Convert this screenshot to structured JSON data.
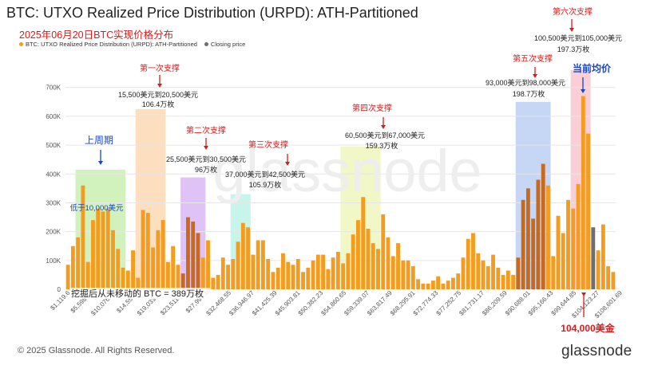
{
  "header": {
    "title": "BTC: UTXO Realized Price Distribution (URPD): ATH-Partitioned",
    "subtitle": "2025年06月20日BTC实现价格分布"
  },
  "legend": {
    "series_label": "BTC: UTXO Realized Price Distribution (URPD): ATH-Partitioned",
    "closing_label": "Closing price"
  },
  "footer": {
    "copyright": "© 2025 Glassnode. All Rights Reserved.",
    "brand": "glassnode"
  },
  "watermark": "glassnode",
  "colors": {
    "bar": "#f39c1f",
    "bar_shade": "#c76a1d",
    "closing": "#6e6e6e",
    "green": "#c9f0b0",
    "orange": "#fdd8b3",
    "purple": "#dab8f5",
    "teal": "#bdf2e8",
    "yellow": "#eef6bd",
    "blue": "#bcd0f5",
    "pink": "#f9c6cf",
    "red_text": "#d61c1c",
    "blue_text": "#1a47c4",
    "grid": "#e6e6e6"
  },
  "annotations": {
    "support1": {
      "title": "第一次支撑",
      "range": "15,500美元到20,500美元",
      "amount": "106.4万枚"
    },
    "support2": {
      "title": "第二次支撑",
      "range": "25,500美元到30,500美元",
      "amount": "96万枚"
    },
    "support3": {
      "title": "第三次支撑",
      "range": "37,000美元到42,500美元",
      "amount": "105.9万枚"
    },
    "support4": {
      "title": "第四次支撑",
      "range": "60,500美元到67,000美元",
      "amount": "159.3万枚"
    },
    "support5": {
      "title": "第五次支撑",
      "range": "93,000美元到98,000美元",
      "amount": "198.7万枚"
    },
    "support6": {
      "title": "第六次支撑",
      "range": "100,500美元到105,000美元",
      "amount": "197.3万枚"
    },
    "prev_cycle": "上周期",
    "below_10k": "低于10,000美元",
    "current_avg": "当前均价",
    "mined": "挖掘后从未移动的 BTC = 389万枚",
    "price_104k": "104,000美金"
  },
  "chart_data": {
    "type": "bar",
    "title": "BTC: UTXO Realized Price Distribution (URPD): ATH-Partitioned",
    "y_ticks": [
      "0",
      "100K",
      "200K",
      "300K",
      "400K",
      "500K",
      "600K",
      "700K"
    ],
    "ylim": [
      0,
      760000
    ],
    "x_tick_labels": [
      "$1,119.6",
      "$5,598.01",
      "$10,076.42",
      "$14,554.8",
      "$19,033.22",
      "$23,511.63",
      "$27,990.1",
      "$32,468.55",
      "$36,946.97",
      "$41,425.39",
      "$45,903.81",
      "$50,382.23",
      "$54,860.65",
      "$59,339.07",
      "$63,817.49",
      "$68,295.91",
      "$72,774.33",
      "$77,252.75",
      "$81,731.17",
      "$86,209.59",
      "$90,688.01",
      "$95,166.43",
      "$99,644.85",
      "$104,123.27",
      "$108,601.69"
    ],
    "closing_price_bin": 105,
    "values": [
      85000,
      150000,
      180000,
      360000,
      95000,
      240000,
      280000,
      270000,
      280000,
      205000,
      140000,
      75000,
      65000,
      135000,
      40000,
      275000,
      265000,
      145000,
      205000,
      240000,
      95000,
      150000,
      85000,
      55000,
      250000,
      235000,
      195000,
      110000,
      170000,
      40000,
      50000,
      110000,
      85000,
      105000,
      165000,
      230000,
      215000,
      120000,
      170000,
      170000,
      105000,
      60000,
      75000,
      125000,
      95000,
      85000,
      105000,
      60000,
      75000,
      100000,
      120000,
      120000,
      70000,
      110000,
      130000,
      90000,
      125000,
      190000,
      240000,
      320000,
      210000,
      160000,
      140000,
      260000,
      180000,
      115000,
      160000,
      100000,
      100000,
      80000,
      35000,
      20000,
      20000,
      30000,
      45000,
      20000,
      30000,
      40000,
      55000,
      110000,
      175000,
      195000,
      125000,
      100000,
      80000,
      120000,
      75000,
      50000,
      65000,
      50000,
      110000,
      310000,
      350000,
      245000,
      380000,
      435000,
      360000,
      115000,
      255000,
      195000,
      310000,
      280000,
      365000,
      670000,
      540000,
      215000,
      135000,
      225000,
      80000,
      60000
    ]
  }
}
